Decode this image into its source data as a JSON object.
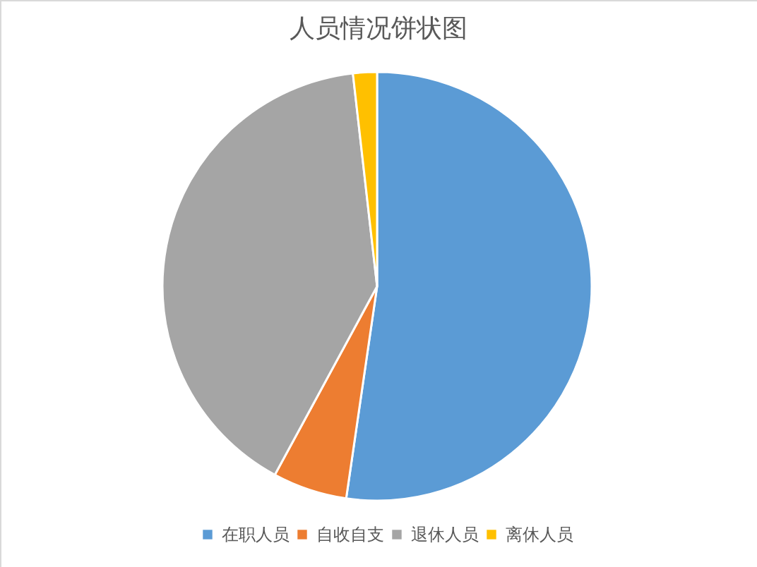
{
  "chart_data": {
    "type": "pie",
    "title": "人员情况饼状图",
    "categories": [
      "在职人员",
      "自收自支",
      "退休人员",
      "离休人员"
    ],
    "values": [
      52.3,
      5.6,
      40.3,
      1.8
    ],
    "colors": [
      "#5b9bd5",
      "#ed7d31",
      "#a5a5a5",
      "#ffc000"
    ],
    "legend": "bottom"
  }
}
